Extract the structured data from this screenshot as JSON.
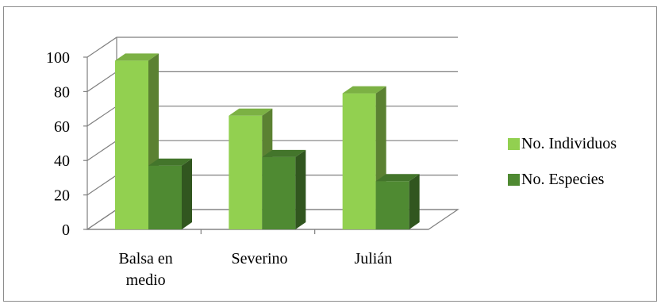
{
  "chart_data": {
    "type": "bar",
    "style": "3d-clustered-column",
    "categories": [
      [
        "Balsa en",
        "medio"
      ],
      [
        "Severino"
      ],
      [
        "Julián"
      ]
    ],
    "series": [
      {
        "name": "No. Individuos",
        "values": [
          98,
          66,
          79
        ],
        "color": "#92d050"
      },
      {
        "name": "No. Especies",
        "values": [
          37,
          42,
          28
        ],
        "color": "#4f8a32"
      }
    ],
    "ylim": [
      0,
      100
    ],
    "yticks": [
      0,
      20,
      40,
      60,
      80,
      100
    ],
    "grid": true,
    "legend_position": "right",
    "colors": {
      "grid": "#7f7f7f",
      "wall_shadow": "#d9d9d9"
    }
  }
}
